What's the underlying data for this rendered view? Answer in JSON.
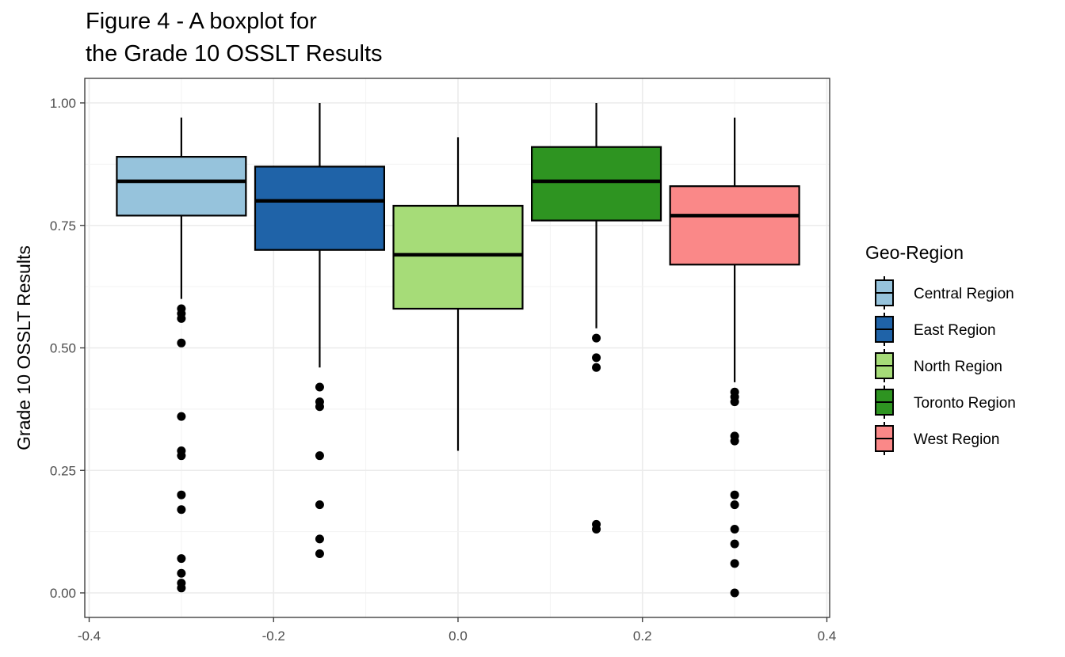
{
  "chart_data": {
    "type": "boxplot",
    "title": [
      "Figure 4 - A boxplot for",
      "the Grade 10 OSSLT Results"
    ],
    "ylabel": "Grade 10 OSSLT Results",
    "xlabel": "",
    "xlim": [
      -0.4,
      0.4
    ],
    "ylim": [
      0.0,
      1.0
    ],
    "x_ticks": [
      -0.4,
      -0.2,
      0.0,
      0.2,
      0.4
    ],
    "x_tick_labels": [
      "-0.4",
      "-0.2",
      "0.0",
      "0.2",
      "0.4"
    ],
    "y_ticks": [
      0.0,
      0.25,
      0.5,
      0.75,
      1.0
    ],
    "y_tick_labels": [
      "0.00",
      "0.25",
      "0.50",
      "0.75",
      "1.00"
    ],
    "grid": true,
    "legend": {
      "title": "Geo-Region",
      "placement": "right"
    },
    "series": [
      {
        "name": "Central Region",
        "color": "#a6cee3",
        "box_fill": "#96c3dc",
        "x_center": -0.3,
        "x_left": -0.37,
        "x_right": -0.23,
        "whisker_low": 0.6,
        "q1": 0.77,
        "median": 0.84,
        "q3": 0.89,
        "whisker_high": 0.97,
        "outliers": [
          0.58,
          0.57,
          0.56,
          0.51,
          0.36,
          0.29,
          0.28,
          0.2,
          0.17,
          0.07,
          0.04,
          0.02,
          0.01
        ]
      },
      {
        "name": "East Region",
        "color": "#1f63a8",
        "box_fill": "#1f63a8",
        "x_center": -0.15,
        "x_left": -0.22,
        "x_right": -0.08,
        "whisker_low": 0.46,
        "q1": 0.7,
        "median": 0.8,
        "q3": 0.87,
        "whisker_high": 1.0,
        "outliers": [
          0.42,
          0.39,
          0.38,
          0.28,
          0.18,
          0.11,
          0.08
        ]
      },
      {
        "name": "North Region",
        "color": "#a6dc78",
        "box_fill": "#a6dc78",
        "x_center": 0.0,
        "x_left": -0.07,
        "x_right": 0.07,
        "whisker_low": 0.29,
        "q1": 0.58,
        "median": 0.69,
        "q3": 0.79,
        "whisker_high": 0.93,
        "outliers": []
      },
      {
        "name": "Toronto Region",
        "color": "#2e9421",
        "box_fill": "#2e9421",
        "x_center": 0.15,
        "x_left": 0.08,
        "x_right": 0.22,
        "whisker_low": 0.54,
        "q1": 0.76,
        "median": 0.84,
        "q3": 0.91,
        "whisker_high": 1.0,
        "outliers": [
          0.52,
          0.48,
          0.46,
          0.14,
          0.13
        ]
      },
      {
        "name": "West Region",
        "color": "#fa8888",
        "box_fill": "#fa8888",
        "x_center": 0.3,
        "x_left": 0.23,
        "x_right": 0.37,
        "whisker_low": 0.43,
        "q1": 0.67,
        "median": 0.77,
        "q3": 0.83,
        "whisker_high": 0.97,
        "outliers": [
          0.41,
          0.4,
          0.39,
          0.32,
          0.31,
          0.2,
          0.18,
          0.13,
          0.1,
          0.06,
          0.0
        ]
      }
    ]
  }
}
